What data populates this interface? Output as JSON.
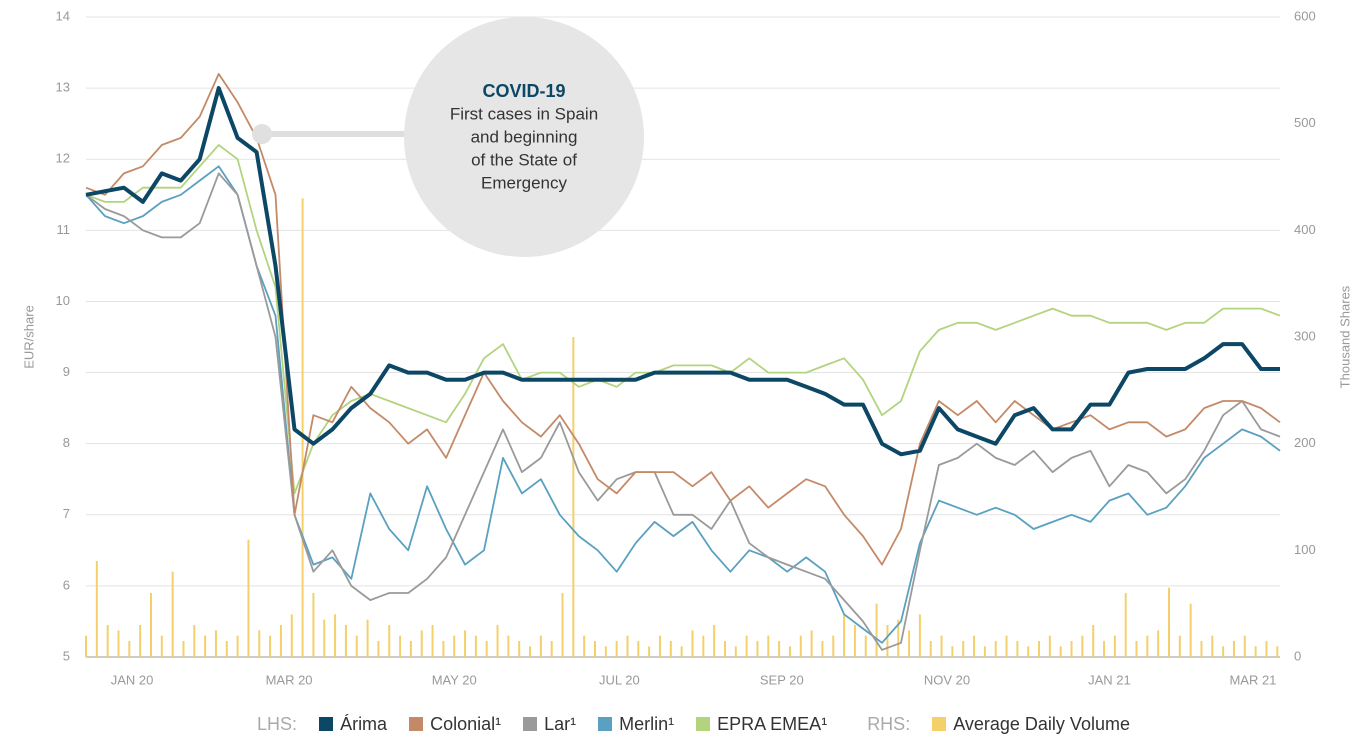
{
  "chart_data": {
    "type": "line",
    "ylabel": "EUR/share",
    "y2label": "Thousand Shares",
    "xlim": [
      0,
      441
    ],
    "ylim": [
      5,
      14
    ],
    "yticks": [
      5,
      6,
      7,
      8,
      9,
      10,
      11,
      12,
      13,
      14
    ],
    "y2lim": [
      0,
      600
    ],
    "y2ticks": [
      0,
      100,
      200,
      300,
      400,
      500,
      600
    ],
    "xticks": [
      {
        "value": 17,
        "label": "JAN 20"
      },
      {
        "value": 75,
        "label": "MAR 20"
      },
      {
        "value": 136,
        "label": "MAY 20"
      },
      {
        "value": 197,
        "label": "JUL 20"
      },
      {
        "value": 257,
        "label": "SEP 20"
      },
      {
        "value": 318,
        "label": "NOV 20"
      },
      {
        "value": 378,
        "label": "JAN 21"
      },
      {
        "value": 431,
        "label": "MAR 21"
      }
    ],
    "grid": true,
    "legend_lhs": "LHS:",
    "legend_rhs": "RHS:",
    "annotation": {
      "title": "COVID-19",
      "lines": [
        "First cases in Spain",
        "and beginning",
        "of the State of",
        "Emergency"
      ]
    },
    "x": [
      0,
      7,
      14,
      21,
      28,
      35,
      42,
      49,
      56,
      63,
      70,
      77,
      84,
      91,
      98,
      105,
      112,
      119,
      126,
      133,
      140,
      147,
      154,
      161,
      168,
      175,
      182,
      189,
      196,
      203,
      210,
      217,
      224,
      231,
      238,
      245,
      252,
      259,
      266,
      273,
      280,
      287,
      294,
      301,
      308,
      315,
      322,
      329,
      336,
      343,
      350,
      357,
      364,
      371,
      378,
      385,
      392,
      399,
      406,
      413,
      420,
      427,
      434,
      441
    ],
    "series": [
      {
        "name": "Árima",
        "color": "#0d4766",
        "values": [
          11.5,
          11.55,
          11.6,
          11.4,
          11.8,
          11.7,
          12.0,
          13.0,
          12.3,
          12.1,
          10.5,
          8.2,
          8.0,
          8.2,
          8.5,
          8.7,
          9.1,
          9.0,
          9.0,
          8.9,
          8.9,
          9.0,
          9.0,
          8.9,
          8.9,
          8.9,
          8.9,
          8.9,
          8.9,
          8.9,
          9.0,
          9.0,
          9.0,
          9.0,
          9.0,
          8.9,
          8.9,
          8.9,
          8.8,
          8.7,
          8.55,
          8.55,
          8.0,
          7.85,
          7.9,
          8.5,
          8.2,
          8.1,
          8.0,
          8.4,
          8.5,
          8.2,
          8.2,
          8.55,
          8.55,
          9.0,
          9.05,
          9.05,
          9.05,
          9.2,
          9.4,
          9.4,
          9.05,
          9.05
        ]
      },
      {
        "name": "Colonial¹",
        "color": "#c48a68",
        "values": [
          11.6,
          11.5,
          11.8,
          11.9,
          12.2,
          12.3,
          12.6,
          13.2,
          12.8,
          12.3,
          11.5,
          7.0,
          8.4,
          8.3,
          8.8,
          8.5,
          8.3,
          8.0,
          8.2,
          7.8,
          8.4,
          9.0,
          8.6,
          8.3,
          8.1,
          8.4,
          8.0,
          7.5,
          7.3,
          7.6,
          7.6,
          7.6,
          7.4,
          7.6,
          7.2,
          7.4,
          7.1,
          7.3,
          7.5,
          7.4,
          7.0,
          6.7,
          6.3,
          6.8,
          8.0,
          8.6,
          8.4,
          8.6,
          8.3,
          8.6,
          8.4,
          8.2,
          8.3,
          8.4,
          8.2,
          8.3,
          8.3,
          8.1,
          8.2,
          8.5,
          8.6,
          8.6,
          8.5,
          8.3
        ]
      },
      {
        "name": "Lar¹",
        "color": "#9a9a9a",
        "values": [
          11.5,
          11.3,
          11.2,
          11.0,
          10.9,
          10.9,
          11.1,
          11.8,
          11.5,
          10.5,
          9.5,
          7.0,
          6.2,
          6.5,
          6.0,
          5.8,
          5.9,
          5.9,
          6.1,
          6.4,
          7.0,
          7.6,
          8.2,
          7.6,
          7.8,
          8.3,
          7.6,
          7.2,
          7.5,
          7.6,
          7.6,
          7.0,
          7.0,
          6.8,
          7.2,
          6.6,
          6.4,
          6.3,
          6.2,
          6.1,
          5.8,
          5.5,
          5.1,
          5.2,
          6.5,
          7.7,
          7.8,
          8.0,
          7.8,
          7.7,
          7.9,
          7.6,
          7.8,
          7.9,
          7.4,
          7.7,
          7.6,
          7.3,
          7.5,
          7.9,
          8.4,
          8.6,
          8.2,
          8.1
        ]
      },
      {
        "name": "Merlin¹",
        "color": "#5aa0c0",
        "values": [
          11.5,
          11.2,
          11.1,
          11.2,
          11.4,
          11.5,
          11.7,
          11.9,
          11.5,
          10.5,
          9.8,
          7.0,
          6.3,
          6.4,
          6.1,
          7.3,
          6.8,
          6.5,
          7.4,
          6.8,
          6.3,
          6.5,
          7.8,
          7.3,
          7.5,
          7.0,
          6.7,
          6.5,
          6.2,
          6.6,
          6.9,
          6.7,
          6.9,
          6.5,
          6.2,
          6.5,
          6.4,
          6.2,
          6.4,
          6.2,
          5.6,
          5.4,
          5.2,
          5.5,
          6.6,
          7.2,
          7.1,
          7.0,
          7.1,
          7.0,
          6.8,
          6.9,
          7.0,
          6.9,
          7.2,
          7.3,
          7.0,
          7.1,
          7.4,
          7.8,
          8.0,
          8.2,
          8.1,
          7.9
        ]
      },
      {
        "name": "EPRA EMEA¹",
        "color": "#b3d47e",
        "values": [
          11.5,
          11.4,
          11.4,
          11.6,
          11.6,
          11.6,
          11.9,
          12.2,
          12.0,
          11.0,
          10.2,
          7.3,
          8.0,
          8.4,
          8.6,
          8.7,
          8.6,
          8.5,
          8.4,
          8.3,
          8.7,
          9.2,
          9.4,
          8.9,
          9.0,
          9.0,
          8.8,
          8.9,
          8.8,
          9.0,
          9.0,
          9.1,
          9.1,
          9.1,
          9.0,
          9.2,
          9.0,
          9.0,
          9.0,
          9.1,
          9.2,
          8.9,
          8.4,
          8.6,
          9.3,
          9.6,
          9.7,
          9.7,
          9.6,
          9.7,
          9.8,
          9.9,
          9.8,
          9.8,
          9.7,
          9.7,
          9.7,
          9.6,
          9.7,
          9.7,
          9.9,
          9.9,
          9.9,
          9.8
        ]
      },
      {
        "name": "Average Daily Volume",
        "color": "#f5d06a",
        "type": "bar",
        "axis": "y2",
        "x": [
          0,
          4,
          8,
          12,
          16,
          20,
          24,
          28,
          32,
          36,
          40,
          44,
          48,
          52,
          56,
          60,
          64,
          68,
          72,
          76,
          80,
          84,
          88,
          92,
          96,
          100,
          104,
          108,
          112,
          116,
          120,
          124,
          128,
          132,
          136,
          140,
          144,
          148,
          152,
          156,
          160,
          164,
          168,
          172,
          176,
          180,
          184,
          188,
          192,
          196,
          200,
          204,
          208,
          212,
          216,
          220,
          224,
          228,
          232,
          236,
          240,
          244,
          248,
          252,
          256,
          260,
          264,
          268,
          272,
          276,
          280,
          284,
          288,
          292,
          296,
          300,
          304,
          308,
          312,
          316,
          320,
          324,
          328,
          332,
          336,
          340,
          344,
          348,
          352,
          356,
          360,
          364,
          368,
          372,
          376,
          380,
          384,
          388,
          392,
          396,
          400,
          404,
          408,
          412,
          416,
          420,
          424,
          428,
          432,
          436,
          440
        ],
        "values": [
          20,
          90,
          30,
          25,
          15,
          30,
          60,
          20,
          80,
          15,
          30,
          20,
          25,
          15,
          20,
          110,
          25,
          20,
          30,
          40,
          430,
          60,
          35,
          40,
          30,
          20,
          35,
          15,
          30,
          20,
          15,
          25,
          30,
          15,
          20,
          25,
          20,
          15,
          30,
          20,
          15,
          10,
          20,
          15,
          60,
          300,
          20,
          15,
          10,
          15,
          20,
          15,
          10,
          20,
          15,
          10,
          25,
          20,
          30,
          15,
          10,
          20,
          15,
          20,
          15,
          10,
          20,
          25,
          15,
          20,
          40,
          30,
          20,
          50,
          30,
          35,
          25,
          40,
          15,
          20,
          10,
          15,
          20,
          10,
          15,
          20,
          15,
          10,
          15,
          20,
          10,
          15,
          20,
          30,
          15,
          20,
          60,
          15,
          20,
          25,
          65,
          20,
          50,
          15,
          20,
          10,
          15,
          20,
          10,
          15,
          10
        ]
      }
    ]
  }
}
